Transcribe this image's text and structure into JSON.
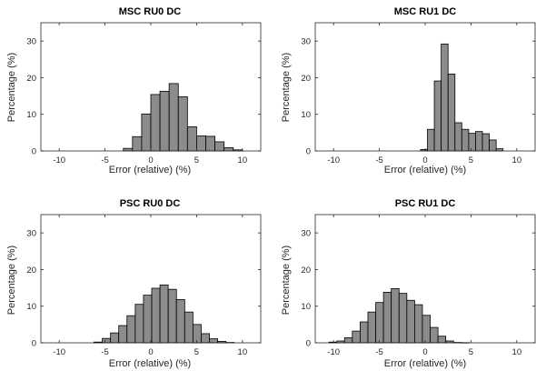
{
  "chart_data": [
    {
      "type": "bar",
      "title": "MSC RU0 DC",
      "xlabel": "Error (relative) (%)",
      "ylabel": "Percentage (%)",
      "xlim": [
        -12,
        12
      ],
      "ylim": [
        0,
        35
      ],
      "xticks": [
        -10,
        -5,
        0,
        5,
        10
      ],
      "yticks": [
        0,
        10,
        20,
        30
      ],
      "bin_width": 1,
      "bin_starts": [
        -3,
        -2,
        -1,
        0,
        1,
        2,
        3,
        4,
        5,
        6,
        7,
        8,
        9
      ],
      "values": [
        0.7,
        3.9,
        10.1,
        15.4,
        16.3,
        18.4,
        14.8,
        6.6,
        4.1,
        4.0,
        2.5,
        0.9,
        0.3
      ],
      "grid": false
    },
    {
      "type": "bar",
      "title": "MSC RU1 DC",
      "xlabel": "Error (relative) (%)",
      "ylabel": "Percentage (%)",
      "xlim": [
        -12,
        12
      ],
      "ylim": [
        0,
        35
      ],
      "xticks": [
        -10,
        -5,
        0,
        5,
        10
      ],
      "yticks": [
        0,
        10,
        20,
        30
      ],
      "bin_width": 0.75,
      "bin_starts": [
        -0.5,
        0.25,
        1.0,
        1.75,
        2.5,
        3.25,
        4.0,
        4.75,
        5.5,
        6.25,
        7.0,
        7.75
      ],
      "values": [
        0.4,
        5.9,
        19.1,
        29.2,
        21.0,
        7.7,
        5.9,
        4.8,
        5.3,
        4.7,
        3.0,
        0.6
      ],
      "grid": false
    },
    {
      "type": "bar",
      "title": "PSC RU0 DC",
      "xlabel": "Error (relative) (%)",
      "ylabel": "Percentage (%)",
      "xlim": [
        -12,
        12
      ],
      "ylim": [
        0,
        35
      ],
      "xticks": [
        -10,
        -5,
        0,
        5,
        10
      ],
      "yticks": [
        0,
        10,
        20,
        30
      ],
      "bin_width": 0.9,
      "bin_starts": [
        -6.2,
        -5.3,
        -4.4,
        -3.5,
        -2.6,
        -1.7,
        -0.8,
        0.1,
        1.0,
        1.9,
        2.8,
        3.7,
        4.6,
        5.5,
        6.4,
        7.3,
        8.2
      ],
      "values": [
        0.2,
        1.2,
        2.7,
        4.7,
        7.4,
        10.5,
        13.0,
        14.9,
        15.8,
        14.6,
        11.8,
        8.4,
        5.0,
        2.5,
        1.1,
        0.4,
        0.1
      ],
      "grid": false
    },
    {
      "type": "bar",
      "title": "PSC RU1 DC",
      "xlabel": "Error (relative) (%)",
      "ylabel": "Percentage (%)",
      "xlim": [
        -12,
        12
      ],
      "ylim": [
        0,
        35
      ],
      "xticks": [
        -10,
        -5,
        0,
        5,
        10
      ],
      "yticks": [
        0,
        10,
        20,
        30
      ],
      "bin_width": 0.85,
      "bin_starts": [
        -10.5,
        -9.65,
        -8.8,
        -7.95,
        -7.1,
        -6.25,
        -5.4,
        -4.55,
        -3.7,
        -2.85,
        -2.0,
        -1.15,
        -0.3,
        0.55,
        1.4,
        2.25,
        3.1,
        3.95
      ],
      "values": [
        0.2,
        0.5,
        1.4,
        3.2,
        5.7,
        8.4,
        11.0,
        13.8,
        14.8,
        13.5,
        11.6,
        10.4,
        7.5,
        4.2,
        1.8,
        0.5,
        0.1,
        0.05
      ],
      "grid": false
    }
  ]
}
